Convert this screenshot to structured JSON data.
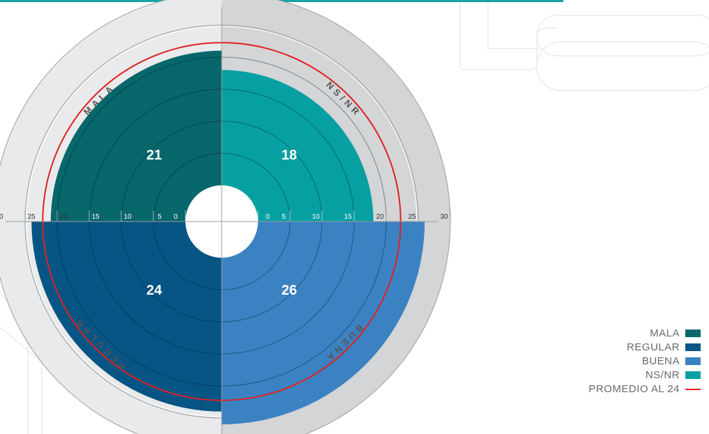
{
  "chart_data": {
    "type": "polar_area",
    "categories": [
      "MALA",
      "NS/NR",
      "BUENA",
      "REGULAR"
    ],
    "values": [
      21,
      18,
      26,
      24
    ],
    "colors": {
      "MALA": "#07676a",
      "NS/NR": "#07a0a2",
      "BUENA": "#3b82c2",
      "REGULAR": "#075585",
      "promedio": "#e02020",
      "top_bar": "#17a3a3"
    },
    "radial_ticks": [
      "0",
      "5",
      "10",
      "15",
      "20",
      "25",
      "30"
    ],
    "rmax": 30,
    "promedio_value": 22.25,
    "legend": [
      {
        "label": "MALA",
        "color": "#07676a",
        "kind": "swatch"
      },
      {
        "label": "REGULAR",
        "color": "#075585",
        "kind": "swatch"
      },
      {
        "label": "BUENA",
        "color": "#3b82c2",
        "kind": "swatch"
      },
      {
        "label": "NS/NR",
        "color": "#07a0a2",
        "kind": "swatch"
      },
      {
        "label": "PROMEDIO AL 24",
        "color": "#e02020",
        "kind": "line"
      }
    ],
    "legend_position": "bottom-right"
  }
}
